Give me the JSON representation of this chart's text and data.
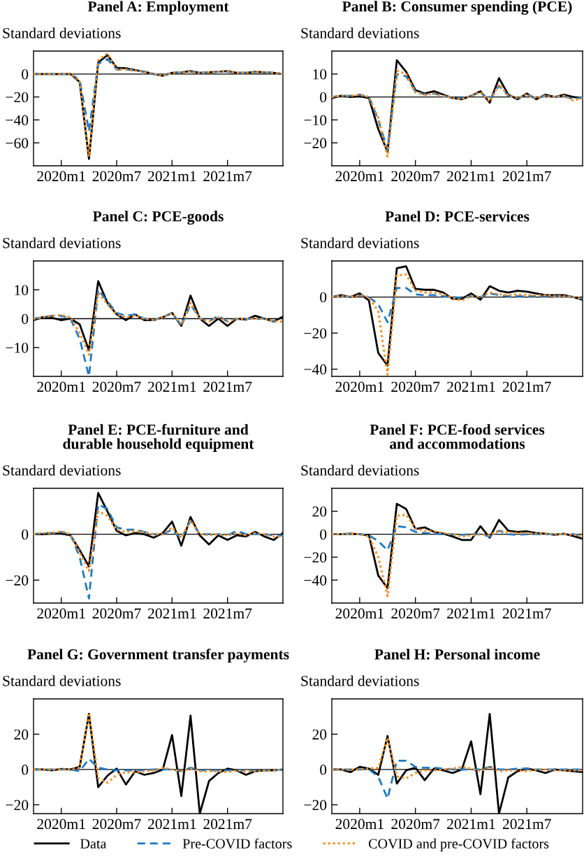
{
  "chart_data": [
    {
      "type": "line",
      "title": "Panel A: Employment",
      "ylabel": "Standard deviations",
      "x": [
        "2019-10",
        "2019-11",
        "2019-12",
        "2020-01",
        "2020-02",
        "2020-03",
        "2020-04",
        "2020-05",
        "2020-06",
        "2020-07",
        "2020-08",
        "2020-09",
        "2020-10",
        "2020-11",
        "2020-12",
        "2021-01",
        "2021-02",
        "2021-03",
        "2021-04",
        "2021-05",
        "2021-06",
        "2021-07",
        "2021-08",
        "2021-09",
        "2021-10",
        "2021-11",
        "2021-12",
        "2022-01"
      ],
      "xlim": [
        "2019-10",
        "2022-01"
      ],
      "xticks": [
        {
          "value": "2020-01",
          "label": "2020m1"
        },
        {
          "value": "2020-07",
          "label": "2020m7"
        },
        {
          "value": "2021-01",
          "label": "2021m1"
        },
        {
          "value": "2021-07",
          "label": "2021m7"
        }
      ],
      "ylim": [
        -80,
        20
      ],
      "yticks": [
        -60,
        -40,
        -20,
        0
      ],
      "grid": false,
      "ref_lines": [
        {
          "axis": "y",
          "value": 0,
          "color": "#000000"
        }
      ],
      "series": [
        {
          "color": "#000000",
          "line_style": "solid",
          "values": [
            0,
            0,
            0,
            0,
            0,
            -7,
            -74,
            10,
            16.5,
            5.5,
            5,
            3.5,
            2,
            0,
            -1.5,
            1,
            1.5,
            2.5,
            1,
            1.5,
            2,
            2.5,
            1,
            1,
            2,
            1.5,
            1,
            0
          ]
        },
        {
          "color": "#1f7ac2",
          "line_style": "dashed",
          "values": [
            0,
            0,
            0,
            0,
            0,
            -5,
            -50,
            9,
            13,
            4,
            4,
            3,
            2,
            0,
            -1,
            1,
            1.5,
            2,
            1,
            1.5,
            2,
            2,
            1,
            1,
            2,
            1.5,
            1,
            0
          ]
        },
        {
          "color": "#ff8c1a",
          "line_style": "dotted",
          "values": [
            0,
            0,
            0,
            0,
            0.5,
            -6,
            -72,
            12,
            18,
            4,
            4,
            3,
            2,
            0,
            -1.5,
            1,
            1.5,
            2,
            1,
            1.5,
            2,
            2.5,
            1,
            1,
            2,
            1.5,
            1,
            0
          ]
        }
      ]
    },
    {
      "type": "line",
      "title": "Panel B: Consumer spending (PCE)",
      "ylabel": "Standard deviations",
      "x": [
        "2019-10",
        "2019-11",
        "2019-12",
        "2020-01",
        "2020-02",
        "2020-03",
        "2020-04",
        "2020-05",
        "2020-06",
        "2020-07",
        "2020-08",
        "2020-09",
        "2020-10",
        "2020-11",
        "2020-12",
        "2021-01",
        "2021-02",
        "2021-03",
        "2021-04",
        "2021-05",
        "2021-06",
        "2021-07",
        "2021-08",
        "2021-09",
        "2021-10",
        "2021-11",
        "2021-12",
        "2022-01"
      ],
      "xlim": [
        "2019-10",
        "2022-01"
      ],
      "xticks": [
        {
          "value": "2020-01",
          "label": "2020m1"
        },
        {
          "value": "2020-07",
          "label": "2020m7"
        },
        {
          "value": "2021-01",
          "label": "2021m1"
        },
        {
          "value": "2021-07",
          "label": "2021m7"
        }
      ],
      "ylim": [
        -30,
        20
      ],
      "yticks": [
        -20,
        -10,
        0,
        10
      ],
      "grid": false,
      "ref_lines": [
        {
          "axis": "y",
          "value": 0,
          "color": "#000000"
        }
      ],
      "series": [
        {
          "color": "#000000",
          "line_style": "solid",
          "values": [
            -0.5,
            0.5,
            0,
            0.3,
            -0.5,
            -14,
            -24,
            16,
            11,
            3,
            1.5,
            2.5,
            1,
            -0.5,
            -1,
            0.5,
            2.5,
            -2.5,
            8.2,
            1,
            -1,
            1.5,
            -1,
            1,
            0,
            1,
            0,
            -0.5
          ]
        },
        {
          "color": "#1f7ac2",
          "line_style": "dashed",
          "values": [
            0,
            0.5,
            0.5,
            1,
            0,
            -10,
            -23,
            10,
            9,
            2.5,
            1,
            1.5,
            0.5,
            -0.5,
            -0.5,
            0.5,
            2,
            -1.5,
            5,
            0.5,
            -0.5,
            1,
            -0.5,
            0.5,
            0,
            0.5,
            -1,
            0
          ]
        },
        {
          "color": "#ff8c1a",
          "line_style": "dotted",
          "values": [
            0,
            0.5,
            0.5,
            1,
            0,
            -9,
            -26,
            11.5,
            10,
            2,
            1,
            1.5,
            0.5,
            -0.5,
            -1,
            0.5,
            2,
            -2,
            5.5,
            0.5,
            -0.5,
            1,
            -0.5,
            0.5,
            0,
            0.5,
            -1.5,
            -0.5
          ]
        }
      ]
    },
    {
      "type": "line",
      "title": "Panel C: PCE-goods",
      "ylabel": "Standard deviations",
      "x": [
        "2019-10",
        "2019-11",
        "2019-12",
        "2020-01",
        "2020-02",
        "2020-03",
        "2020-04",
        "2020-05",
        "2020-06",
        "2020-07",
        "2020-08",
        "2020-09",
        "2020-10",
        "2020-11",
        "2020-12",
        "2021-01",
        "2021-02",
        "2021-03",
        "2021-04",
        "2021-05",
        "2021-06",
        "2021-07",
        "2021-08",
        "2021-09",
        "2021-10",
        "2021-11",
        "2021-12",
        "2022-01"
      ],
      "xlim": [
        "2019-10",
        "2022-01"
      ],
      "xticks": [
        {
          "value": "2020-01",
          "label": "2020m1"
        },
        {
          "value": "2020-07",
          "label": "2020m7"
        },
        {
          "value": "2021-01",
          "label": "2021m1"
        },
        {
          "value": "2021-07",
          "label": "2021m7"
        }
      ],
      "ylim": [
        -20,
        20
      ],
      "yticks": [
        -10,
        0,
        10
      ],
      "grid": false,
      "ref_lines": [
        {
          "axis": "y",
          "value": 0,
          "color": "#000000"
        }
      ],
      "series": [
        {
          "color": "#000000",
          "line_style": "solid",
          "values": [
            -0.5,
            0.5,
            0.3,
            -0.5,
            0,
            -2,
            -11,
            13,
            5.5,
            1.5,
            -0.5,
            1.5,
            -0.5,
            -0.5,
            0.5,
            2,
            -2.5,
            8,
            0,
            -2.5,
            0,
            -2.5,
            0,
            -0.3,
            1,
            0,
            -1,
            0.7
          ]
        },
        {
          "color": "#1f7ac2",
          "line_style": "dashed",
          "values": [
            0,
            0.5,
            1,
            1,
            0,
            -7,
            -20,
            10,
            6,
            2,
            1,
            1.5,
            0,
            -0.5,
            0.5,
            2,
            -2.5,
            5,
            0,
            -1,
            1,
            -1,
            0,
            0,
            0,
            0,
            -1,
            -1
          ]
        },
        {
          "color": "#ff8c1a",
          "line_style": "dotted",
          "values": [
            0,
            0.5,
            1,
            1.3,
            0.5,
            -5,
            -12.5,
            9,
            5,
            1.5,
            0.5,
            1,
            0,
            -0.5,
            0.5,
            2,
            -2,
            5.5,
            0,
            -1,
            0.5,
            -1,
            0,
            0,
            0,
            0,
            -1,
            -1
          ]
        }
      ]
    },
    {
      "type": "line",
      "title": "Panel D: PCE-services",
      "ylabel": "Standard deviations",
      "x": [
        "2019-10",
        "2019-11",
        "2019-12",
        "2020-01",
        "2020-02",
        "2020-03",
        "2020-04",
        "2020-05",
        "2020-06",
        "2020-07",
        "2020-08",
        "2020-09",
        "2020-10",
        "2020-11",
        "2020-12",
        "2021-01",
        "2021-02",
        "2021-03",
        "2021-04",
        "2021-05",
        "2021-06",
        "2021-07",
        "2021-08",
        "2021-09",
        "2021-10",
        "2021-11",
        "2021-12",
        "2022-01"
      ],
      "xlim": [
        "2019-10",
        "2022-01"
      ],
      "xticks": [
        {
          "value": "2020-01",
          "label": "2020m1"
        },
        {
          "value": "2020-07",
          "label": "2020m7"
        },
        {
          "value": "2021-01",
          "label": "2021m1"
        },
        {
          "value": "2021-07",
          "label": "2021m7"
        }
      ],
      "ylim": [
        -44,
        20
      ],
      "yticks": [
        -40,
        -20,
        0
      ],
      "grid": false,
      "ref_lines": [
        {
          "axis": "y",
          "value": 0,
          "color": "#000000"
        }
      ],
      "series": [
        {
          "color": "#000000",
          "line_style": "solid",
          "values": [
            0,
            1,
            0,
            2,
            -2,
            -31,
            -38,
            16,
            17,
            4.5,
            4,
            4,
            2.5,
            -1,
            -1,
            2,
            -1.5,
            6,
            3.5,
            2.5,
            3.5,
            3,
            2,
            1,
            1,
            1,
            0,
            -1.5
          ]
        },
        {
          "color": "#1f7ac2",
          "line_style": "dashed",
          "values": [
            0,
            0.5,
            0,
            1,
            0,
            -4,
            -14,
            5,
            5,
            1.5,
            1,
            1,
            0.5,
            0,
            -0.5,
            0.5,
            0,
            2,
            1,
            0.5,
            0.5,
            0.5,
            0.5,
            0.5,
            0.5,
            0.5,
            0,
            -1
          ]
        },
        {
          "color": "#ff8c1a",
          "line_style": "dotted",
          "values": [
            0,
            0.5,
            0,
            1,
            0,
            -8,
            -43,
            12,
            12.5,
            3.5,
            2.5,
            2.5,
            1.5,
            -0.5,
            -2,
            0.5,
            0,
            2.5,
            1.5,
            1,
            1.5,
            1,
            1,
            1,
            0.5,
            0.5,
            0,
            -1
          ]
        }
      ]
    },
    {
      "type": "line",
      "title": "Panel E: PCE-furniture and\ndurable household equipment",
      "ylabel": "Standard deviations",
      "x": [
        "2019-10",
        "2019-11",
        "2019-12",
        "2020-01",
        "2020-02",
        "2020-03",
        "2020-04",
        "2020-05",
        "2020-06",
        "2020-07",
        "2020-08",
        "2020-09",
        "2020-10",
        "2020-11",
        "2020-12",
        "2021-01",
        "2021-02",
        "2021-03",
        "2021-04",
        "2021-05",
        "2021-06",
        "2021-07",
        "2021-08",
        "2021-09",
        "2021-10",
        "2021-11",
        "2021-12",
        "2022-01"
      ],
      "xlim": [
        "2019-10",
        "2022-01"
      ],
      "xticks": [
        {
          "value": "2020-01",
          "label": "2020m1"
        },
        {
          "value": "2020-07",
          "label": "2020m7"
        },
        {
          "value": "2021-01",
          "label": "2021m1"
        },
        {
          "value": "2021-07",
          "label": "2021m7"
        }
      ],
      "ylim": [
        -30,
        20
      ],
      "yticks": [
        -20,
        0
      ],
      "grid": false,
      "ref_lines": [
        {
          "axis": "y",
          "value": 0,
          "color": "#000000"
        }
      ],
      "series": [
        {
          "color": "#000000",
          "line_style": "solid",
          "values": [
            0,
            0,
            0.3,
            0.3,
            -0.5,
            -7,
            -14,
            18,
            10,
            1.5,
            -0.5,
            0.5,
            0,
            -1.5,
            0.5,
            5.5,
            -5,
            7.5,
            -0.5,
            -4.5,
            -0.5,
            -2.5,
            -0.5,
            -1,
            1,
            -1,
            -2.5,
            0.5
          ]
        },
        {
          "color": "#1f7ac2",
          "line_style": "dashed",
          "values": [
            0,
            0.5,
            0.5,
            1,
            0,
            -10,
            -28,
            13,
            11,
            3,
            2,
            2,
            1,
            0,
            0,
            2,
            -2,
            6,
            0,
            0,
            0,
            -0.5,
            1.5,
            0,
            0,
            0,
            -0.5,
            -0.5
          ]
        },
        {
          "color": "#ff8c1a",
          "line_style": "dotted",
          "values": [
            0,
            0.5,
            0.5,
            1.3,
            0,
            -8,
            -16,
            10,
            8,
            2,
            1,
            1.5,
            1,
            0,
            0,
            3,
            -1.5,
            6,
            0,
            -0.5,
            0,
            -0.5,
            0.5,
            -0.5,
            0.5,
            0,
            -1,
            -1
          ]
        }
      ]
    },
    {
      "type": "line",
      "title": "Panel F: PCE-food services\nand accommodations",
      "ylabel": "Standard deviations",
      "x": [
        "2019-10",
        "2019-11",
        "2019-12",
        "2020-01",
        "2020-02",
        "2020-03",
        "2020-04",
        "2020-05",
        "2020-06",
        "2020-07",
        "2020-08",
        "2020-09",
        "2020-10",
        "2020-11",
        "2020-12",
        "2021-01",
        "2021-02",
        "2021-03",
        "2021-04",
        "2021-05",
        "2021-06",
        "2021-07",
        "2021-08",
        "2021-09",
        "2021-10",
        "2021-11",
        "2021-12",
        "2022-01"
      ],
      "xlim": [
        "2019-10",
        "2022-01"
      ],
      "xticks": [
        {
          "value": "2020-01",
          "label": "2020m1"
        },
        {
          "value": "2020-07",
          "label": "2020m7"
        },
        {
          "value": "2021-01",
          "label": "2021m1"
        },
        {
          "value": "2021-07",
          "label": "2021m7"
        }
      ],
      "ylim": [
        -60,
        40
      ],
      "yticks": [
        -40,
        -20,
        0,
        20
      ],
      "grid": false,
      "ref_lines": [
        {
          "axis": "y",
          "value": 0,
          "color": "#000000"
        }
      ],
      "series": [
        {
          "color": "#000000",
          "line_style": "solid",
          "values": [
            0,
            0,
            0.5,
            0,
            -1,
            -36,
            -47,
            26.5,
            22,
            4.5,
            6,
            2,
            0.5,
            -2,
            -5,
            -5,
            7,
            -3,
            12.5,
            3,
            2,
            2.5,
            1,
            0.5,
            -0.5,
            0.5,
            -1.5,
            -4
          ]
        },
        {
          "color": "#1f7ac2",
          "line_style": "dashed",
          "values": [
            0,
            0,
            0.5,
            0,
            -1,
            -6,
            -14,
            7,
            6,
            2,
            1,
            0.5,
            0,
            0,
            -0.5,
            0,
            0,
            -2,
            3,
            0,
            -0.5,
            0,
            0,
            0,
            0,
            0,
            0,
            -1
          ]
        },
        {
          "color": "#ff8c1a",
          "line_style": "dotted",
          "values": [
            0,
            0,
            0.5,
            0,
            -2,
            -20,
            -54,
            16,
            17,
            5,
            3,
            2.5,
            1,
            0,
            -2,
            -1,
            0,
            -1,
            3.5,
            1.5,
            1,
            1,
            0.5,
            0.5,
            0,
            0,
            -0.5,
            -1.5
          ]
        }
      ]
    },
    {
      "type": "line",
      "title": "Panel G: Government transfer payments",
      "ylabel": "Standard deviations",
      "x": [
        "2019-10",
        "2019-11",
        "2019-12",
        "2020-01",
        "2020-02",
        "2020-03",
        "2020-04",
        "2020-05",
        "2020-06",
        "2020-07",
        "2020-08",
        "2020-09",
        "2020-10",
        "2020-11",
        "2020-12",
        "2021-01",
        "2021-02",
        "2021-03",
        "2021-04",
        "2021-05",
        "2021-06",
        "2021-07",
        "2021-08",
        "2021-09",
        "2021-10",
        "2021-11",
        "2021-12",
        "2022-01"
      ],
      "xlim": [
        "2019-10",
        "2022-01"
      ],
      "xticks": [
        {
          "value": "2020-01",
          "label": "2020m1"
        },
        {
          "value": "2020-07",
          "label": "2020m7"
        },
        {
          "value": "2021-01",
          "label": "2021m1"
        },
        {
          "value": "2021-07",
          "label": "2021m7"
        }
      ],
      "ylim": [
        -25,
        40
      ],
      "yticks": [
        -20,
        0,
        20
      ],
      "grid": false,
      "ref_lines": [
        {
          "axis": "y",
          "value": 0,
          "color": "#000000"
        }
      ],
      "series": [
        {
          "color": "#000000",
          "line_style": "solid",
          "values": [
            0,
            0,
            -0.5,
            0.3,
            0,
            1.5,
            31.5,
            -10,
            -3.5,
            0.5,
            -8.5,
            -1,
            -3,
            -2,
            0,
            19.5,
            -15,
            30.5,
            -25,
            -6.5,
            -2,
            0.5,
            -0.5,
            -3,
            -1,
            -0.5,
            -0.5,
            0
          ]
        },
        {
          "color": "#1f7ac2",
          "line_style": "dashed",
          "values": [
            0,
            0,
            0,
            0,
            0,
            -1,
            6,
            1,
            0,
            -0.5,
            -0.5,
            -0.5,
            -0.5,
            0,
            0,
            0,
            -1,
            1,
            -0.5,
            -0.5,
            -0.5,
            -0.5,
            -0.5,
            -0.5,
            -0.5,
            -0.5,
            -0.5,
            0
          ]
        },
        {
          "color": "#ff8c1a",
          "line_style": "dotted",
          "values": [
            0,
            0,
            0,
            0,
            0,
            1,
            32,
            -5,
            -7.5,
            -3,
            -1.5,
            -1.5,
            -1,
            -0.5,
            1,
            0,
            -1,
            0.5,
            -1,
            -1,
            -1,
            -1.5,
            -0.5,
            -1,
            -1,
            -0.5,
            -0.5,
            0
          ]
        }
      ]
    },
    {
      "type": "line",
      "title": "Panel H: Personal income",
      "ylabel": "Standard deviations",
      "x": [
        "2019-10",
        "2019-11",
        "2019-12",
        "2020-01",
        "2020-02",
        "2020-03",
        "2020-04",
        "2020-05",
        "2020-06",
        "2020-07",
        "2020-08",
        "2020-09",
        "2020-10",
        "2020-11",
        "2020-12",
        "2021-01",
        "2021-02",
        "2021-03",
        "2021-04",
        "2021-05",
        "2021-06",
        "2021-07",
        "2021-08",
        "2021-09",
        "2021-10",
        "2021-11",
        "2021-12",
        "2022-01"
      ],
      "xlim": [
        "2019-10",
        "2022-01"
      ],
      "xticks": [
        {
          "value": "2020-01",
          "label": "2020m1"
        },
        {
          "value": "2020-07",
          "label": "2020m7"
        },
        {
          "value": "2021-01",
          "label": "2021m1"
        },
        {
          "value": "2021-07",
          "label": "2021m7"
        }
      ],
      "ylim": [
        -25,
        40
      ],
      "yticks": [
        -20,
        0,
        20
      ],
      "grid": false,
      "legend": "bottom",
      "ref_lines": [
        {
          "axis": "y",
          "value": 0,
          "color": "#000000"
        }
      ],
      "series": [
        {
          "name": "Data",
          "color": "#000000",
          "line_style": "solid",
          "values": [
            0,
            0,
            -1.5,
            1.5,
            0.5,
            -3,
            19,
            -8,
            -0.5,
            1,
            -6,
            0.5,
            -0.5,
            -2,
            0,
            16,
            -14,
            31.5,
            -25,
            -4.5,
            -1,
            0.5,
            -0.5,
            -2,
            0,
            -0.5,
            -1,
            -1.5
          ]
        },
        {
          "name": "Pre-COVID factors",
          "color": "#1f7ac2",
          "line_style": "dashed",
          "values": [
            0,
            0,
            0,
            0,
            0,
            -4,
            -16.5,
            5,
            5,
            1.5,
            1,
            1,
            0.5,
            0,
            0,
            0,
            0,
            1.5,
            0,
            0,
            0.5,
            0.5,
            0,
            0,
            0,
            0,
            0,
            0
          ]
        },
        {
          "name": "COVID and pre-COVID factors",
          "color": "#ff8c1a",
          "line_style": "dotted",
          "values": [
            0,
            0,
            0,
            0,
            0.5,
            1,
            18,
            -4,
            -5,
            -2,
            -0.5,
            -0.5,
            0,
            0.5,
            1.5,
            0.5,
            -1,
            1.5,
            -1,
            -0.5,
            -0.5,
            -1,
            0,
            0,
            -0.5,
            -0.5,
            -0.5,
            -0.5
          ]
        }
      ]
    }
  ]
}
